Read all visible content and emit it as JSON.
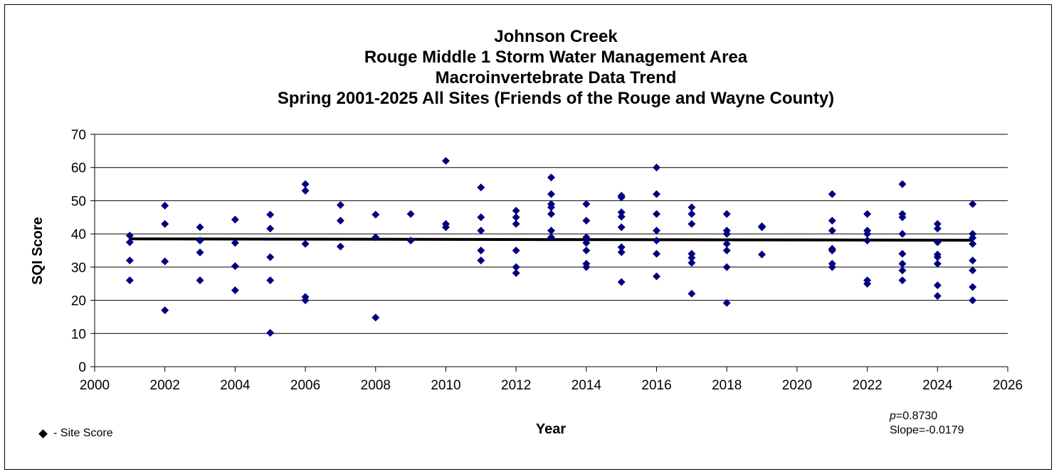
{
  "chart_data": {
    "type": "scatter",
    "title_lines": [
      "Johnson Creek",
      "Rouge Middle 1 Storm Water Management Area",
      "Macroinvertebrate Data Trend",
      "Spring 2001-2025 All Sites (Friends of the Rouge and Wayne County)"
    ],
    "xlabel": "Year",
    "ylabel": "SQI Score",
    "xlim": [
      2000,
      2026
    ],
    "ylim": [
      0,
      70
    ],
    "x_ticks": [
      2000,
      2002,
      2004,
      2006,
      2008,
      2010,
      2012,
      2014,
      2016,
      2018,
      2020,
      2022,
      2024,
      2026
    ],
    "y_ticks": [
      0,
      10,
      20,
      30,
      40,
      50,
      60,
      70
    ],
    "grid": "horizontal",
    "series": [
      {
        "name": "Site Score",
        "marker": "diamond",
        "color": "#000080",
        "points": [
          [
            2001,
            39.5
          ],
          [
            2001,
            37.5
          ],
          [
            2001,
            32
          ],
          [
            2001,
            26
          ],
          [
            2002,
            48.5
          ],
          [
            2002,
            43
          ],
          [
            2002,
            31.7
          ],
          [
            2002,
            17
          ],
          [
            2003,
            42
          ],
          [
            2003,
            38
          ],
          [
            2003,
            34.4
          ],
          [
            2003,
            26
          ],
          [
            2004,
            44.3
          ],
          [
            2004,
            37.3
          ],
          [
            2004,
            30.3
          ],
          [
            2004,
            23
          ],
          [
            2005,
            45.8
          ],
          [
            2005,
            41.6
          ],
          [
            2005,
            33
          ],
          [
            2005,
            26
          ],
          [
            2005,
            10.2
          ],
          [
            2006,
            55
          ],
          [
            2006,
            53
          ],
          [
            2006,
            37
          ],
          [
            2006,
            21
          ],
          [
            2006,
            20
          ],
          [
            2007,
            48.7
          ],
          [
            2007,
            44
          ],
          [
            2007,
            36.2
          ],
          [
            2008,
            45.8
          ],
          [
            2008,
            39
          ],
          [
            2008,
            14.8
          ],
          [
            2009,
            46
          ],
          [
            2009,
            38
          ],
          [
            2010,
            62
          ],
          [
            2010,
            43
          ],
          [
            2010,
            42
          ],
          [
            2011,
            54
          ],
          [
            2011,
            45
          ],
          [
            2011,
            41
          ],
          [
            2011,
            35
          ],
          [
            2011,
            32
          ],
          [
            2012,
            47
          ],
          [
            2012,
            45
          ],
          [
            2012,
            43
          ],
          [
            2012,
            35
          ],
          [
            2012,
            30
          ],
          [
            2012,
            28.2
          ],
          [
            2013,
            57
          ],
          [
            2013,
            52
          ],
          [
            2013,
            49
          ],
          [
            2013,
            48
          ],
          [
            2013,
            46
          ],
          [
            2013,
            41
          ],
          [
            2013,
            39
          ],
          [
            2014,
            49
          ],
          [
            2014,
            44
          ],
          [
            2014,
            39
          ],
          [
            2014,
            37.3
          ],
          [
            2014,
            35
          ],
          [
            2014,
            31
          ],
          [
            2014,
            30
          ],
          [
            2015,
            51.5
          ],
          [
            2015,
            51
          ],
          [
            2015,
            46.5
          ],
          [
            2015,
            45.2
          ],
          [
            2015,
            42
          ],
          [
            2015,
            36
          ],
          [
            2015,
            34.5
          ],
          [
            2015,
            25.5
          ],
          [
            2016,
            60
          ],
          [
            2016,
            52
          ],
          [
            2016,
            46
          ],
          [
            2016,
            41
          ],
          [
            2016,
            38
          ],
          [
            2016,
            34
          ],
          [
            2016,
            27.2
          ],
          [
            2017,
            48
          ],
          [
            2017,
            46
          ],
          [
            2017,
            43
          ],
          [
            2017,
            34
          ],
          [
            2017,
            32.8
          ],
          [
            2017,
            31.3
          ],
          [
            2017,
            22
          ],
          [
            2018,
            46
          ],
          [
            2018,
            41
          ],
          [
            2018,
            40
          ],
          [
            2018,
            37
          ],
          [
            2018,
            35
          ],
          [
            2018,
            30
          ],
          [
            2018,
            19.2
          ],
          [
            2019,
            42.3
          ],
          [
            2019,
            42
          ],
          [
            2019,
            33.8
          ],
          [
            2021,
            52
          ],
          [
            2021,
            44
          ],
          [
            2021,
            41
          ],
          [
            2021,
            35.5
          ],
          [
            2021,
            35
          ],
          [
            2021,
            31
          ],
          [
            2021,
            30
          ],
          [
            2022,
            46
          ],
          [
            2022,
            41
          ],
          [
            2022,
            40
          ],
          [
            2022,
            38
          ],
          [
            2022,
            26
          ],
          [
            2022,
            25
          ],
          [
            2023,
            55
          ],
          [
            2023,
            46
          ],
          [
            2023,
            45
          ],
          [
            2023,
            40
          ],
          [
            2023,
            34
          ],
          [
            2023,
            31
          ],
          [
            2023,
            29
          ],
          [
            2023,
            26
          ],
          [
            2024,
            43
          ],
          [
            2024,
            41.6
          ],
          [
            2024,
            37.5
          ],
          [
            2024,
            33.8
          ],
          [
            2024,
            33
          ],
          [
            2024,
            31
          ],
          [
            2024,
            24.5
          ],
          [
            2024,
            21.3
          ],
          [
            2025,
            49
          ],
          [
            2025,
            40
          ],
          [
            2025,
            38.8
          ],
          [
            2025,
            37
          ],
          [
            2025,
            32
          ],
          [
            2025,
            29
          ],
          [
            2025,
            24
          ],
          [
            2025,
            20
          ]
        ]
      }
    ],
    "trend_line": {
      "x": [
        2001,
        2025
      ],
      "y": [
        38.5,
        38.1
      ],
      "color": "#000000"
    },
    "legend": {
      "marker_label": "- Site Score",
      "placement": "bottom-left"
    },
    "stats": {
      "p_label": "p",
      "p_value": "=0.8730",
      "slope": "Slope=-0.0179"
    }
  }
}
